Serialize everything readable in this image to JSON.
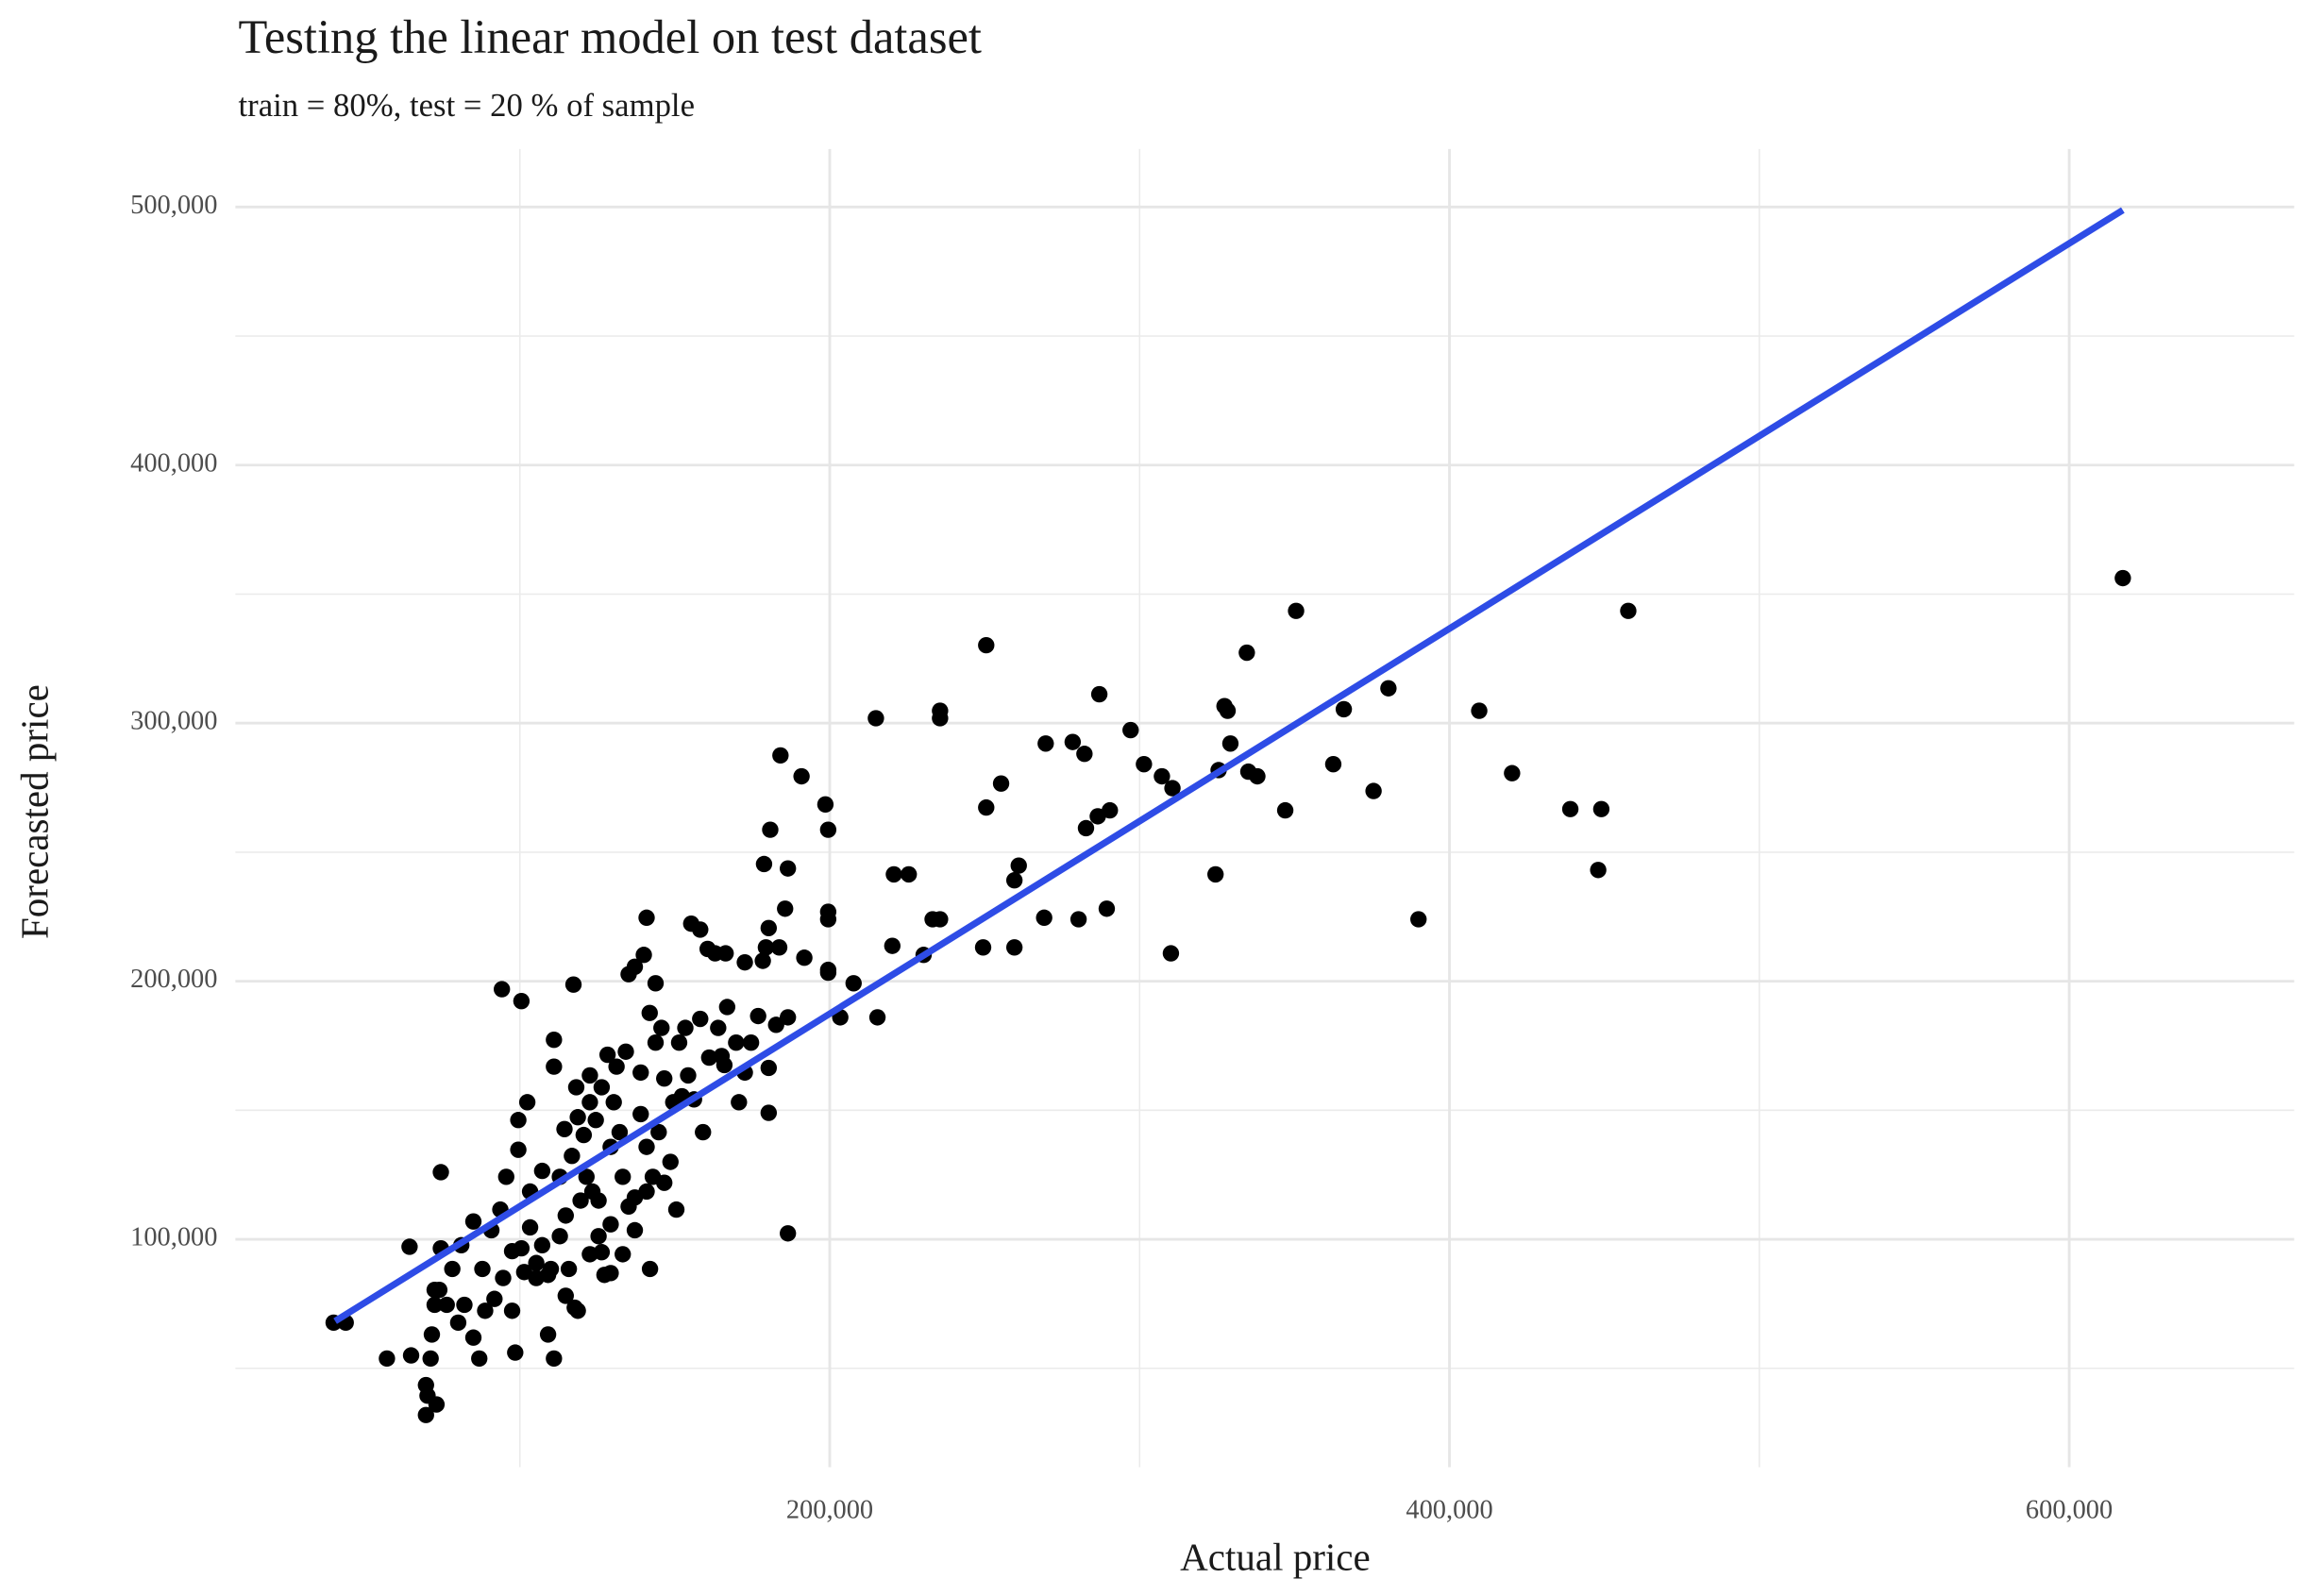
{
  "chart_data": {
    "type": "scatter",
    "title": "Testing the linear model on test dataset",
    "subtitle": "train = 80%, test = 20 % of sample",
    "x_label": "Actual price",
    "y_label": "Forecasted price",
    "color": "#000000",
    "grid": true,
    "xlim": [
      8200,
      672600
    ],
    "ylim": [
      11700,
      522500
    ],
    "xticks": [
      {
        "value": 200000,
        "label": "200,000"
      },
      {
        "value": 400000,
        "label": "400,000"
      },
      {
        "value": 600000,
        "label": "600,000"
      }
    ],
    "yticks": [
      {
        "value": 100000,
        "label": "100,000"
      },
      {
        "value": 200000,
        "label": "200,000"
      },
      {
        "value": 300000,
        "label": "300,000"
      },
      {
        "value": 400000,
        "label": "400,000"
      },
      {
        "value": 500000,
        "label": "500,000"
      }
    ],
    "x_minor_grid": [
      100000,
      300000,
      500000
    ],
    "y_minor_grid": [
      50000,
      150000,
      250000,
      350000,
      450000
    ],
    "fit_line": {
      "color": "#2e4ce6",
      "x": [
        40400,
        617300
      ],
      "y": [
        68300,
        498800
      ]
    },
    "x": [
      617300,
      457700,
      350500,
      334600,
      250500,
      449000,
      439000,
      448000,
      409600,
      420200,
      380300,
      365900,
      362500,
      375500,
      390000,
      347000,
      338000,
      335100,
      329300,
      327400,
      328400,
      325500,
      324500,
      310100,
      310600,
      307200,
      301400,
      297100,
      287000,
      289400,
      290400,
      286500,
      282700,
      280300,
      278400,
      282200,
      269700,
      269200,
      261000,
      259600,
      259600,
      255300,
      250500,
      249500,
      235600,
      235600,
      235600,
      233200,
      230300,
      225500,
      220700,
      220200,
      214900,
      215400,
      207700,
      203400,
      199500,
      199500,
      199500,
      199500,
      199500,
      198600,
      191800,
      190900,
      186500,
      186500,
      186500,
      185600,
      184100,
      183700,
      182700,
      180800,
      180300,
      180300,
      180300,
      179400,
      178800,
      178400,
      176900,
      172600,
      166400,
      163000,
      160600,
      158200,
      155300,
      140900,
      140000,
      137100,
      135100,
      117300,
      94200,
      100500,
      74500,
      64400,
      57100,
      64900,
      71200,
      69700,
      70200,
      73100,
      69700,
      39900,
      43800,
      142000,
      74000,
      76400,
      80100,
      82100,
      85000,
      86900,
      88800,
      91800,
      94600,
      97500,
      98500,
      100500,
      101400,
      103300,
      105300,
      107200,
      109100,
      111000,
      110000,
      112900,
      114800,
      115800,
      117700,
      119600,
      121500,
      123400,
      125400,
      127300,
      129300,
      130300,
      132200,
      133200,
      135100,
      137100,
      139000,
      140900,
      142900,
      144800,
      146600,
      148600,
      150500,
      151400,
      153400,
      156200,
      158200,
      161100,
      164000,
      166900,
      169800,
      172600,
      174600,
      170700,
      159100,
      145700,
      143800,
      141900,
      134200,
      131200,
      126400,
      122600,
      118700,
      111000,
      111000,
      102400,
      99500,
      99500,
      95600,
      93700,
      90800,
      87900,
      85000,
      81100,
      78200,
      74500,
      72500,
      71600,
      72500,
      114800,
      118700,
      122600,
      125400,
      129300,
      133200,
      137100,
      140900,
      146600,
      149500,
      152300,
      154300,
      129300,
      126400,
      105300,
      109100,
      97500,
      103300,
      107200,
      112900,
      116800,
      120600,
      124500,
      122600,
      128300,
      118200,
      114400,
      139000,
      143800,
      166000,
      165100
    ],
    "values": [
      356200,
      343500,
      343500,
      327300,
      330200,
      266700,
      266700,
      243100,
      304800,
      280600,
      313500,
      305400,
      284100,
      273700,
      224000,
      266200,
      279400,
      281200,
      292100,
      306600,
      304800,
      281800,
      241400,
      210800,
      274800,
      279400,
      284100,
      297300,
      311200,
      228100,
      266200,
      263900,
      259300,
      224000,
      292700,
      288100,
      292100,
      224600,
      244800,
      239100,
      213100,
      276600,
      267300,
      213100,
      304800,
      301900,
      224000,
      224000,
      210200,
      241400,
      241400,
      213700,
      301900,
      186000,
      199200,
      186000,
      203300,
      204400,
      226900,
      224000,
      258700,
      268500,
      209100,
      279400,
      243700,
      186000,
      102300,
      228100,
      287500,
      213100,
      183100,
      258700,
      220600,
      149000,
      166400,
      213100,
      245400,
      207900,
      186500,
      207300,
      210800,
      210800,
      212500,
      220000,
      222300,
      224600,
      210200,
      205600,
      202700,
      198700,
      196900,
      192300,
      126000,
      97100,
      53800,
      55000,
      53800,
      43500,
      39400,
      36000,
      31900,
      67700,
      67700,
      88500,
      80400,
      74600,
      67700,
      74600,
      61900,
      53800,
      72300,
      76900,
      85000,
      72300,
      56100,
      96500,
      87300,
      104600,
      90800,
      97700,
      63100,
      53800,
      88500,
      101200,
      109200,
      88500,
      73500,
      115000,
      124200,
      118500,
      101200,
      86200,
      135800,
      153100,
      141500,
      124200,
      112700,
      103500,
      148500,
      135800,
      124200,
      141500,
      162300,
      130000,
      111500,
      176200,
      181900,
      154200,
      185400,
      170400,
      181900,
      190000,
      176200,
      164600,
      176200,
      153100,
      141500,
      181900,
      199200,
      187700,
      172700,
      166900,
      158900,
      153100,
      147300,
      177300,
      166900,
      153100,
      146200,
      134700,
      124200,
      111500,
      103500,
      88500,
      106900,
      97700,
      88500,
      96500,
      80400,
      63100,
      74600,
      78100,
      72300,
      94200,
      115000,
      105800,
      94200,
      116200,
      118500,
      121900,
      153100,
      155400,
      163500,
      86900,
      95000,
      85000,
      86200,
      95400,
      118500,
      126500,
      124200,
      132300,
      140400,
      146200,
      163500,
      171500,
      158900,
      142700,
      164600,
      176200,
      167500,
      171000
    ]
  }
}
